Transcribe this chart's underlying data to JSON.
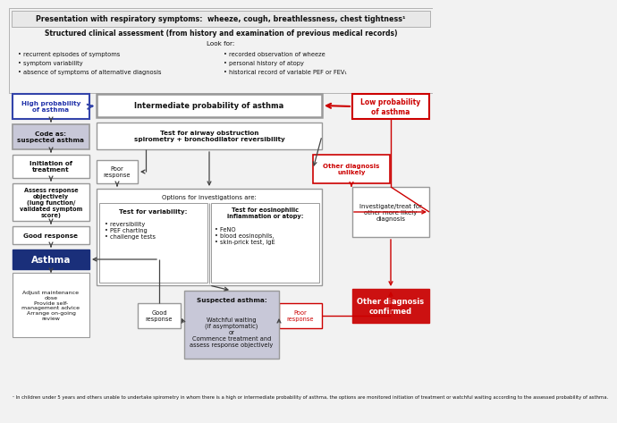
{
  "title_line1": "Presentation with respiratory symptoms:  wheeze, cough, breathlessness, chest tightness¹",
  "title_line2": "Structured clinical assessment (from history and examination of previous medical records)",
  "title_line3": "Look for:",
  "bullets_left": [
    "recurrent episodes of symptoms",
    "symptom variability",
    "absence of symptoms of alternative diagnosis"
  ],
  "bullets_right": [
    "recorded observation of wheeze",
    "personal history of atopy",
    "historical record of variable PEF or FEV₁"
  ],
  "bg_color": "#f2f2f2",
  "box_border_gray": "#999999",
  "box_border_blue": "#3344aa",
  "box_border_red": "#cc0000",
  "box_fill_white": "#ffffff",
  "box_fill_lightgray": "#c8c8d8",
  "box_fill_darkblue": "#1a2f7a",
  "box_fill_red": "#cc1111",
  "text_blue": "#2233aa",
  "text_red": "#cc0000",
  "text_white": "#ffffff",
  "text_black": "#111111",
  "arrow_blue": "#3344aa",
  "arrow_red": "#cc0000",
  "arrow_black": "#444444",
  "footnote": "¹ In children under 5 years and others unable to undertake spirometry in whom there is a high or intermediate probability of asthma, the options are monitored initiation of treatment or watchful waiting according to the assessed probability of asthma."
}
